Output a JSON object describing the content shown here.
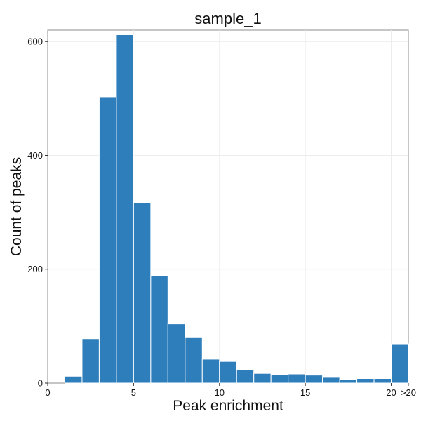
{
  "chart_data": {
    "type": "bar",
    "title": "sample_1",
    "xlabel": "Peak enrichment",
    "ylabel": "Count of peaks",
    "bar_color": "#2e7ebc",
    "grid": true,
    "xlim": [
      0,
      21
    ],
    "ylim": [
      0,
      620
    ],
    "x_ticks": [
      {
        "value": 0,
        "label": "0"
      },
      {
        "value": 5,
        "label": "5"
      },
      {
        "value": 10,
        "label": "10"
      },
      {
        "value": 15,
        "label": "15"
      },
      {
        "value": 20,
        "label": "20"
      },
      {
        "value": 21,
        "label": ">20"
      }
    ],
    "y_ticks": [
      {
        "value": 0,
        "label": "0"
      },
      {
        "value": 200,
        "label": "200"
      },
      {
        "value": 400,
        "label": "400"
      },
      {
        "value": 600,
        "label": "600"
      }
    ],
    "bins": [
      {
        "x0": 1,
        "x1": 2,
        "value": 12
      },
      {
        "x0": 2,
        "x1": 3,
        "value": 78
      },
      {
        "x0": 3,
        "x1": 4,
        "value": 503
      },
      {
        "x0": 4,
        "x1": 5,
        "value": 612
      },
      {
        "x0": 5,
        "x1": 6,
        "value": 317
      },
      {
        "x0": 6,
        "x1": 7,
        "value": 189
      },
      {
        "x0": 7,
        "x1": 8,
        "value": 104
      },
      {
        "x0": 8,
        "x1": 9,
        "value": 81
      },
      {
        "x0": 9,
        "x1": 10,
        "value": 42
      },
      {
        "x0": 10,
        "x1": 11,
        "value": 38
      },
      {
        "x0": 11,
        "x1": 12,
        "value": 23
      },
      {
        "x0": 12,
        "x1": 13,
        "value": 17
      },
      {
        "x0": 13,
        "x1": 14,
        "value": 15
      },
      {
        "x0": 14,
        "x1": 15,
        "value": 16
      },
      {
        "x0": 15,
        "x1": 16,
        "value": 14
      },
      {
        "x0": 16,
        "x1": 17,
        "value": 10
      },
      {
        "x0": 17,
        "x1": 18,
        "value": 6
      },
      {
        "x0": 18,
        "x1": 19,
        "value": 8
      },
      {
        "x0": 19,
        "x1": 20,
        "value": 8
      },
      {
        "x0": 20,
        "x1": 21,
        "value": 69
      }
    ]
  }
}
